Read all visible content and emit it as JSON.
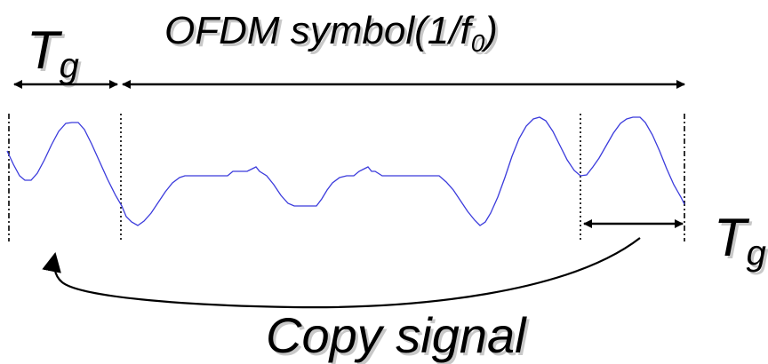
{
  "labels": {
    "guard_left": {
      "main": "T",
      "sub": "g"
    },
    "ofdm_symbol": {
      "main": "OFDM symbol(1/f",
      "sub": "0",
      "close": ")"
    },
    "guard_right": {
      "main": "T",
      "sub": "g"
    },
    "copy_signal": "Copy signal"
  },
  "colors": {
    "waveform": "#3b3bdc",
    "arrows": "#000000",
    "text": "#000000",
    "text_shadow": "#c8c8c8"
  },
  "icons": {
    "double_arrow": "double-headed-arrow",
    "curved_arrow": "curved-copy-arrow"
  }
}
